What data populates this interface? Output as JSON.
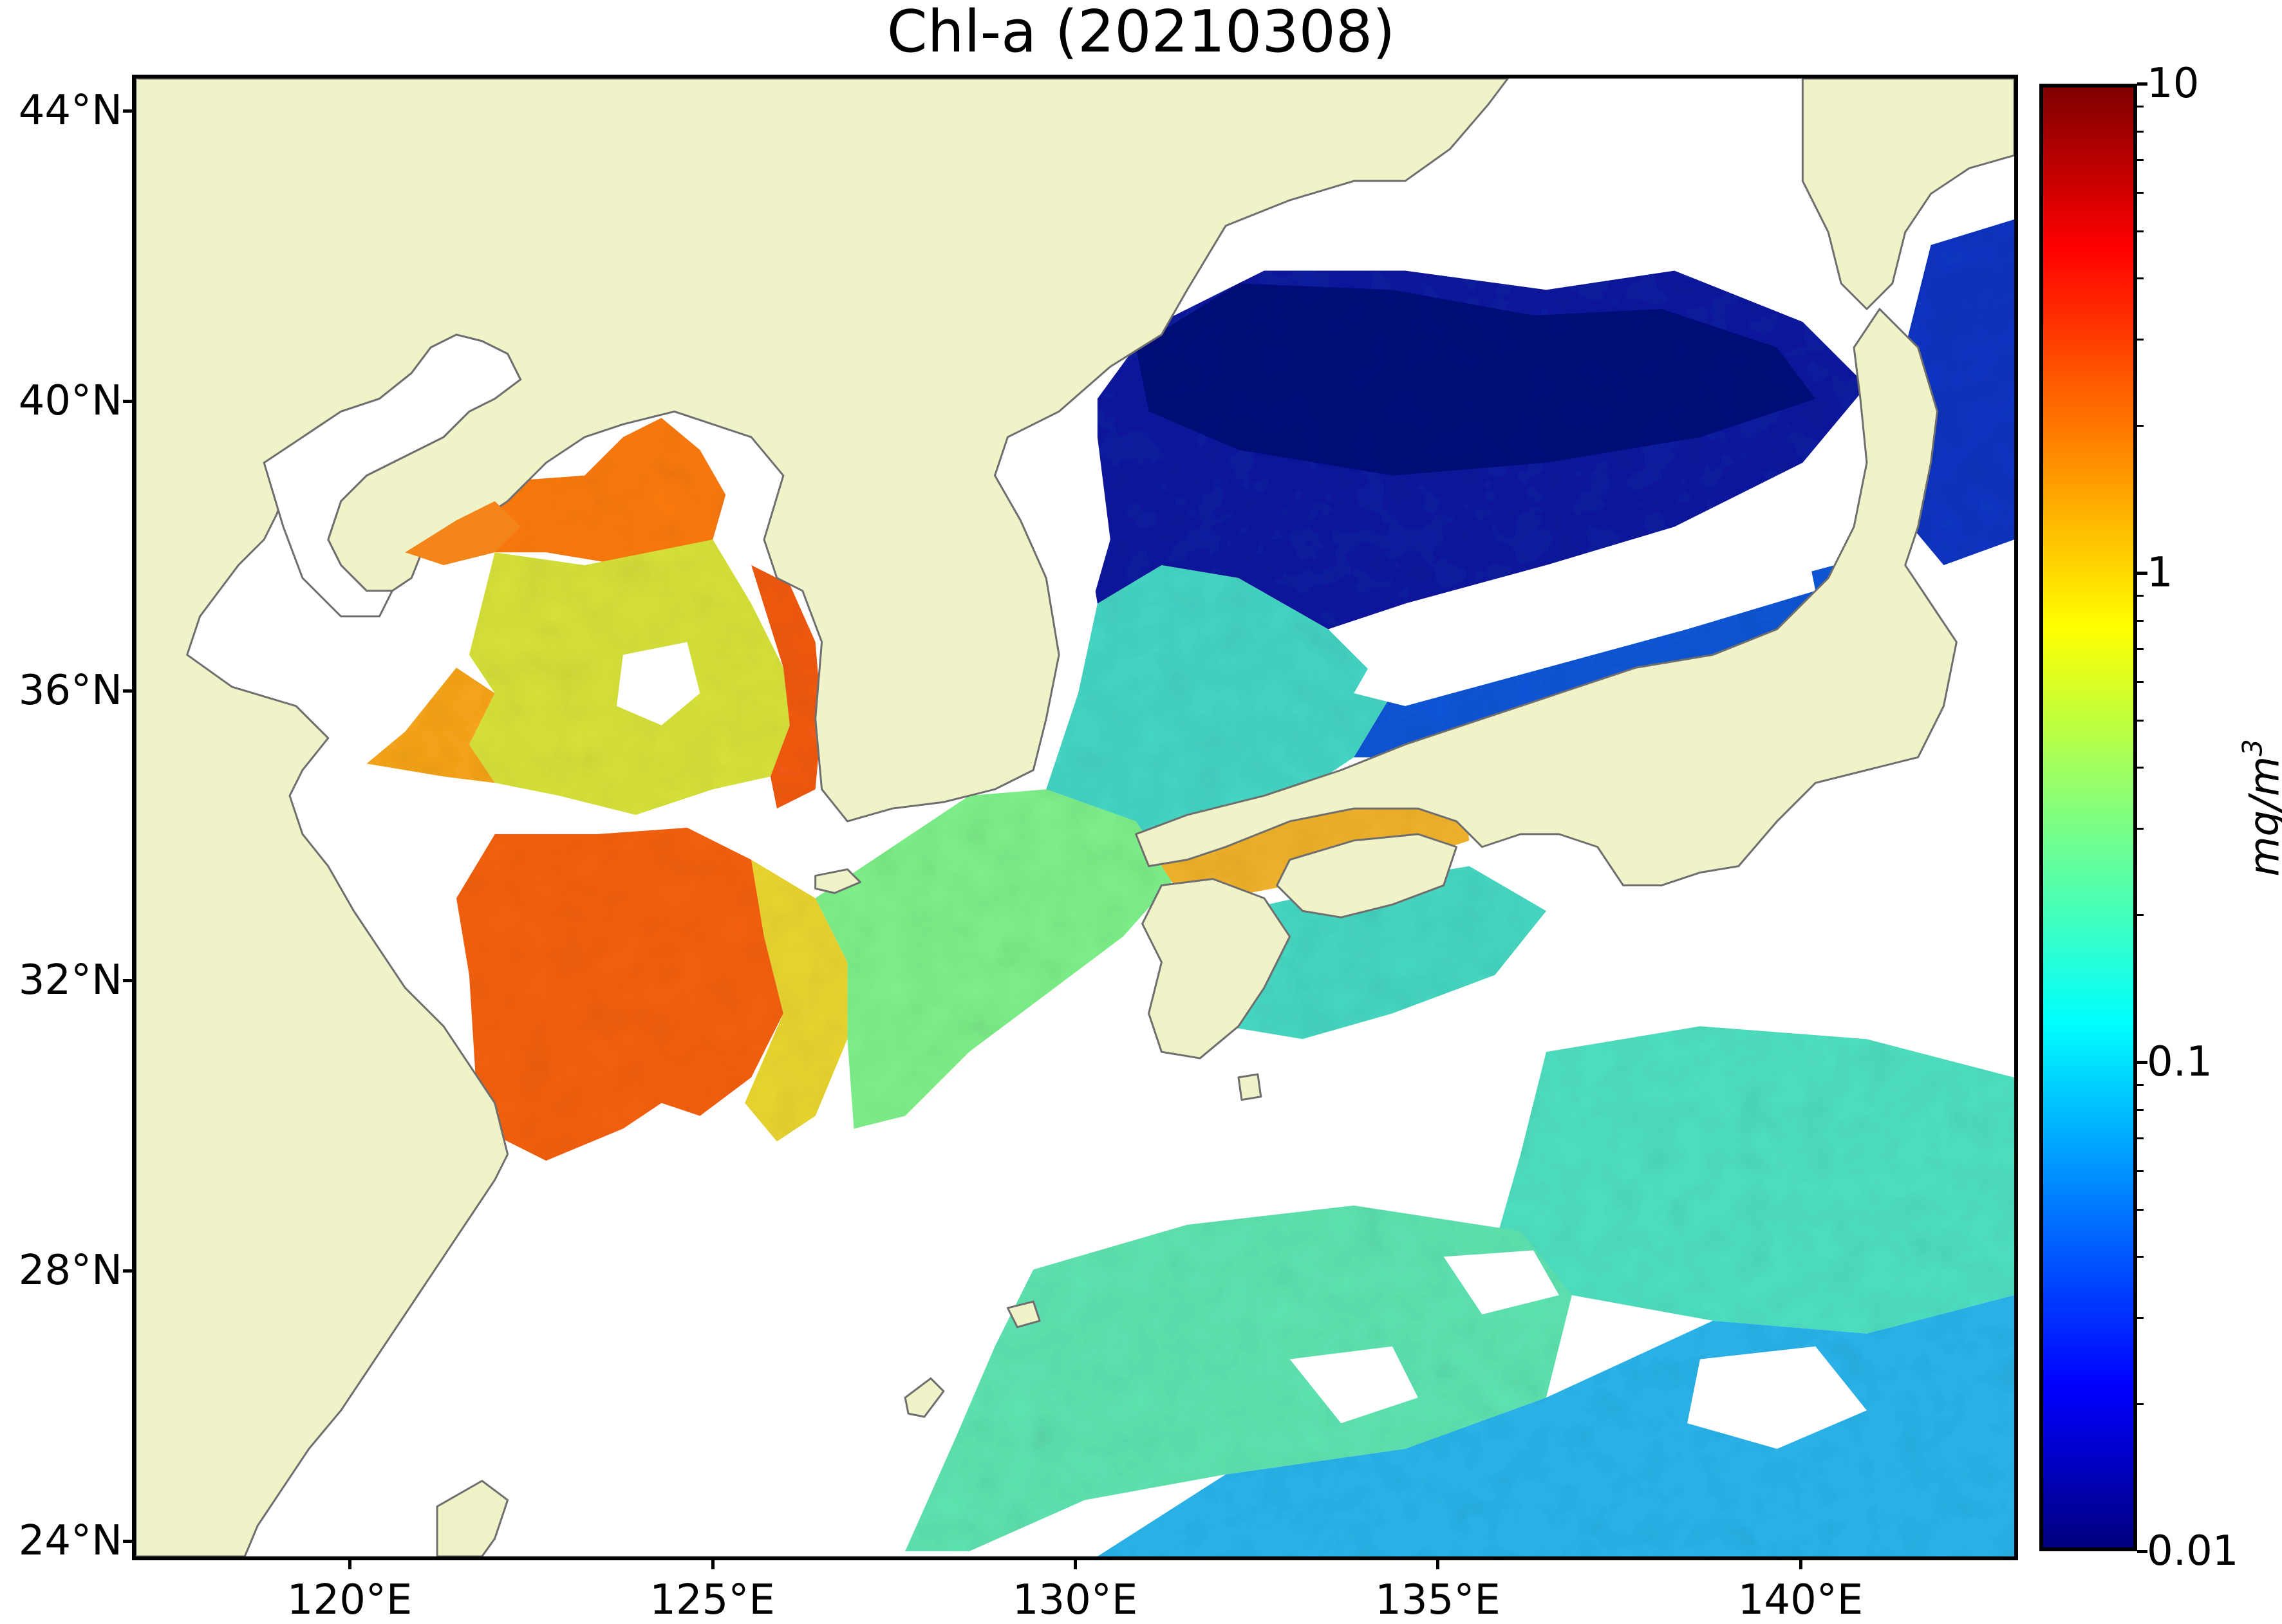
{
  "title": "Chl-a (20210308)",
  "map": {
    "lon_range": [
      117,
      143
    ],
    "lat_range": [
      24,
      44.5
    ],
    "projection": "equirectangular",
    "land_color": "#f0f3c8",
    "coastline_color": "#6e6e6e",
    "no_data_color": "#ffffff",
    "lat_ticks": [
      {
        "value": 44,
        "label": "44°N"
      },
      {
        "value": 40,
        "label": "40°N"
      },
      {
        "value": 36,
        "label": "36°N"
      },
      {
        "value": 32,
        "label": "32°N"
      },
      {
        "value": 28,
        "label": "28°N"
      },
      {
        "value": 24,
        "label": "24°N"
      }
    ],
    "lon_ticks": [
      {
        "value": 120,
        "label": "120°E"
      },
      {
        "value": 125,
        "label": "125°E"
      },
      {
        "value": 130,
        "label": "130°E"
      },
      {
        "value": 135,
        "label": "135°E"
      },
      {
        "value": 140,
        "label": "140°E"
      }
    ]
  },
  "colorbar": {
    "unit_base": "mg/m",
    "unit_exp": "3",
    "scale": "log",
    "range": [
      0.01,
      10
    ],
    "colormap": "jet",
    "major_ticks": [
      {
        "value": 10,
        "label": "10"
      },
      {
        "value": 1,
        "label": "1"
      },
      {
        "value": 0.1,
        "label": "0.1"
      },
      {
        "value": 0.01,
        "label": "0.01"
      }
    ]
  }
}
